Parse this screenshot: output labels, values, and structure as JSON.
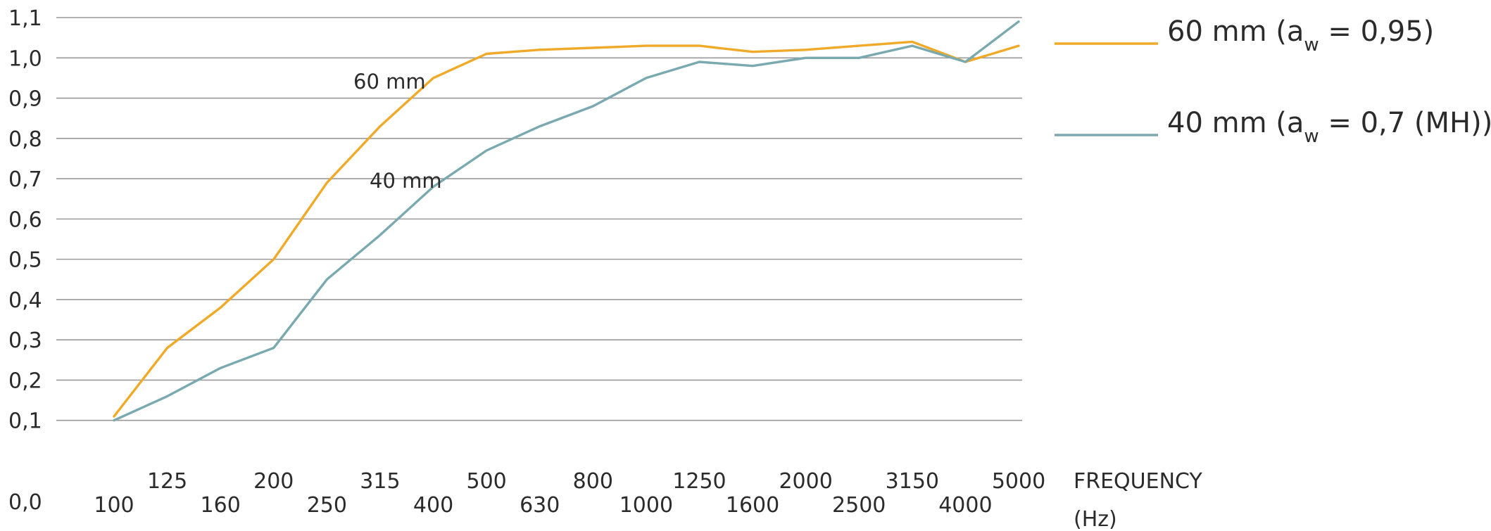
{
  "chart_data": {
    "type": "line",
    "title": "",
    "xlabel": "FREQUENCY",
    "xunit": "(Hz)",
    "ylabel": "",
    "x": [
      100,
      125,
      160,
      200,
      250,
      315,
      400,
      500,
      630,
      800,
      1000,
      1250,
      1600,
      2000,
      2500,
      3150,
      4000,
      5000
    ],
    "ylim": [
      0.0,
      1.1
    ],
    "yticks": [
      "0,0",
      "0,1",
      "0,2",
      "0,3",
      "0,4",
      "0,5",
      "0,6",
      "0,7",
      "0,8",
      "0,9",
      "1,0",
      "1,1"
    ],
    "grid": true,
    "legend_position": "right",
    "series": [
      {
        "name": "60 mm",
        "legend_label": "60 mm (a",
        "legend_sub": "w",
        "legend_suffix": " = 0,95)",
        "color": "#F0AA2A",
        "points": [
          {
            "x": 100,
            "y": 0.11
          },
          {
            "x": 125,
            "y": 0.28
          },
          {
            "x": 160,
            "y": 0.38
          },
          {
            "x": 200,
            "y": 0.5
          },
          {
            "x": 250,
            "y": 0.69
          },
          {
            "x": 315,
            "y": 0.83
          },
          {
            "x": 400,
            "y": 0.95
          },
          {
            "x": 500,
            "y": 1.01
          },
          {
            "x": 630,
            "y": 1.02
          },
          {
            "x": 800,
            "y": 1.025
          },
          {
            "x": 1000,
            "y": 1.03
          },
          {
            "x": 1250,
            "y": 1.03
          },
          {
            "x": 1600,
            "y": 1.015
          },
          {
            "x": 2000,
            "y": 1.02
          },
          {
            "x": 2500,
            "y": 1.03
          },
          {
            "x": 3150,
            "y": 1.04
          },
          {
            "x": 4000,
            "y": 0.99
          },
          {
            "x": 5000,
            "y": 1.03
          }
        ]
      },
      {
        "name": "40 mm",
        "legend_label": "40 mm (a",
        "legend_sub": "w",
        "legend_suffix": " = 0,7 (MH))",
        "color": "#7AA9AF",
        "points": [
          {
            "x": 100,
            "y": 0.1
          },
          {
            "x": 125,
            "y": 0.16
          },
          {
            "x": 160,
            "y": 0.23
          },
          {
            "x": 200,
            "y": 0.28
          },
          {
            "x": 250,
            "y": 0.45
          },
          {
            "x": 315,
            "y": 0.56
          },
          {
            "x": 400,
            "y": 0.68
          },
          {
            "x": 500,
            "y": 0.77
          },
          {
            "x": 630,
            "y": 0.83
          },
          {
            "x": 800,
            "y": 0.88
          },
          {
            "x": 1000,
            "y": 0.95
          },
          {
            "x": 1250,
            "y": 0.99
          },
          {
            "x": 1600,
            "y": 0.98
          },
          {
            "x": 2000,
            "y": 1.0
          },
          {
            "x": 2500,
            "y": 1.0
          },
          {
            "x": 3150,
            "y": 1.03
          },
          {
            "x": 4000,
            "y": 0.99
          },
          {
            "x": 5000,
            "y": 1.09
          }
        ]
      }
    ],
    "annotations": [
      {
        "text": "60 mm",
        "x": 315,
        "y": 0.93
      },
      {
        "text": "40 mm",
        "x": 315,
        "y": 0.7
      }
    ]
  }
}
